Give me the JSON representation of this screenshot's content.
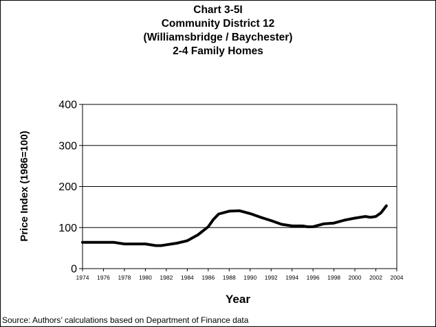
{
  "chart_data": {
    "type": "line",
    "title_lines": [
      "Chart 3-5I",
      "Community District 12",
      "(Williamsbridge / Baychester)",
      "2-4 Family Homes"
    ],
    "xlabel": "Year",
    "ylabel": "Price Index (1986=100)",
    "xlim": [
      1974,
      2004
    ],
    "ylim": [
      0,
      400
    ],
    "x_ticks": [
      1974,
      1976,
      1978,
      1980,
      1982,
      1984,
      1986,
      1988,
      1990,
      1992,
      1994,
      1996,
      1998,
      2000,
      2002,
      2004
    ],
    "y_ticks": [
      0,
      100,
      200,
      300,
      400
    ],
    "grid": "horizontal",
    "series": [
      {
        "color": "#000000",
        "x": [
          1974,
          1975,
          1976,
          1977,
          1978,
          1979,
          1980,
          1981,
          1981.5,
          1982,
          1983,
          1984,
          1985,
          1986,
          1986.5,
          1987,
          1988,
          1989,
          1990,
          1991,
          1992,
          1993,
          1994,
          1995,
          1995.5,
          1996,
          1997,
          1998,
          1999,
          2000,
          2001,
          2001.5,
          2002,
          2002.5,
          2003
        ],
        "y": [
          64,
          64,
          64,
          64,
          60,
          60,
          60,
          56,
          56,
          58,
          62,
          68,
          82,
          102,
          120,
          133,
          140,
          141,
          134,
          125,
          117,
          108,
          104,
          104,
          102,
          102,
          109,
          111,
          118,
          123,
          127,
          125,
          127,
          136,
          153
        ]
      }
    ]
  },
  "footer": {
    "source": "Source: Authors’ calculations based on Department of Finance data"
  }
}
